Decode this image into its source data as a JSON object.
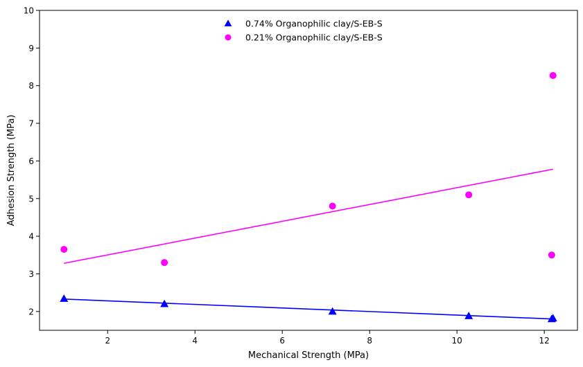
{
  "chart_data": {
    "type": "scatter",
    "title": "",
    "xlabel": "Mechanical Strength (MPa)",
    "ylabel": "Adhesion Strength (MPa)",
    "xlim": [
      0.44,
      12.76
    ],
    "ylim": [
      1.5,
      10
    ],
    "xticks": [
      2,
      4,
      6,
      8,
      10,
      12
    ],
    "yticks": [
      2,
      3,
      4,
      5,
      6,
      7,
      8,
      9,
      10
    ],
    "grid": false,
    "legend_position": "top-center",
    "series": [
      {
        "name": "0.74% Organophilic clay/S-EB-S",
        "marker": "triangle",
        "color": "#0000ff",
        "x": [
          1.0,
          3.3,
          7.15,
          10.27,
          12.17,
          12.2
        ],
        "y": [
          2.34,
          2.2,
          2.0,
          1.88,
          1.8,
          1.82
        ],
        "trendline": {
          "x": [
            1.0,
            12.2
          ],
          "y": [
            2.33,
            1.8
          ]
        }
      },
      {
        "name": "0.21% Organophilic clay/S-EB-S",
        "marker": "circle",
        "color": "#ff00ff",
        "x": [
          1.0,
          3.3,
          7.15,
          10.27,
          12.17,
          12.2
        ],
        "y": [
          3.65,
          3.3,
          4.8,
          5.1,
          3.5,
          8.27
        ],
        "trendline": {
          "x": [
            1.0,
            12.2
          ],
          "y": [
            3.28,
            5.78
          ]
        }
      }
    ]
  }
}
